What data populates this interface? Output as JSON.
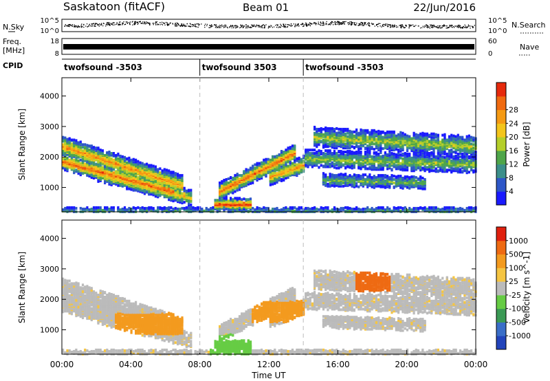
{
  "header": {
    "station": "Saskatoon (fitACF)",
    "beam": "Beam 01",
    "date": "22/Jun/2016"
  },
  "top_strip": {
    "nsky_label": "N.Sky",
    "nsky_ticks": [
      "10^5",
      "10^0"
    ],
    "nsearch_label": "N.Search",
    "nsearch_ticks": [
      "10^5",
      "10^0"
    ],
    "freq_label_1": "Freq.",
    "freq_label_2": "[MHz]",
    "freq_ticks": [
      "18",
      "8"
    ],
    "nave_label": "Nave",
    "nave_ticks": [
      "60",
      "0"
    ],
    "cpid_label": "CPID",
    "cpid_segments": [
      {
        "label": "twofsound -3503",
        "start_hour": 0,
        "end_hour": 8
      },
      {
        "label": "twofsound 3503",
        "start_hour": 8,
        "end_hour": 14
      },
      {
        "label": "twofsound -3503",
        "start_hour": 14,
        "end_hour": 24
      }
    ]
  },
  "chart_data": [
    {
      "type": "heatmap",
      "name": "power",
      "ylabel": "Slant Range [km]",
      "ylim": [
        200,
        4600
      ],
      "yticks": [
        "1000",
        "2000",
        "3000",
        "4000"
      ],
      "xlim_hours": [
        0,
        24
      ],
      "colorbar_label": "Power [dB]",
      "colorbar_ticks": [
        "4",
        "8",
        "12",
        "16",
        "20",
        "24",
        "28"
      ],
      "colors": [
        "#1a1aff",
        "#2e57c8",
        "#3c8f8a",
        "#4fa64a",
        "#b5cf2a",
        "#f3c51c",
        "#f59a14",
        "#f06a10",
        "#e62a0c"
      ]
    },
    {
      "type": "heatmap",
      "name": "velocity",
      "ylabel": "Slant Range [km]",
      "ylim": [
        200,
        4600
      ],
      "yticks": [
        "1000",
        "2000",
        "3000",
        "4000"
      ],
      "xlim_hours": [
        0,
        24
      ],
      "xticks": [
        "00:00",
        "04:00",
        "08:00",
        "12:00",
        "16:00",
        "20:00",
        "00:00"
      ],
      "xlabel": "Time UT",
      "colorbar_label": "Velocity [m s^-1]",
      "colorbar_ticks": [
        "1000",
        "500",
        "100",
        "25",
        "-25",
        "-100",
        "-500",
        "-1000"
      ],
      "colors": [
        "#2244bb",
        "#3a6ec8",
        "#3b9a55",
        "#66cc44",
        "#bbbbbb",
        "#f5c542",
        "#f39a1e",
        "#ee6a12",
        "#e0200e"
      ]
    }
  ]
}
